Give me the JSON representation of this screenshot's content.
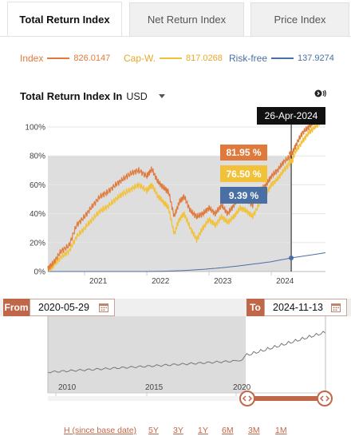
{
  "tabs": [
    {
      "label": "Total Return Index",
      "active": true
    },
    {
      "label": "Net Return Index",
      "active": false
    },
    {
      "label": "Price Index",
      "active": false
    }
  ],
  "legend": [
    {
      "name": "Index",
      "value": "826.0147",
      "color": "#e07a3c"
    },
    {
      "name": "Cap-W.",
      "value": "817.0268",
      "color": "#f2c13a"
    },
    {
      "name": "Risk-free",
      "value": "137.9274",
      "color": "#4a6fa5"
    }
  ],
  "chart_header": {
    "title": "Total Return Index In",
    "currency": "USD"
  },
  "tooltip": {
    "date": "26-Apr-2024",
    "items": [
      {
        "label": "81.95 %",
        "color": "#e07a3c"
      },
      {
        "label": "76.50 %",
        "color": "#f2c13a"
      },
      {
        "label": "9.39 %",
        "color": "#4a6fa5"
      }
    ]
  },
  "navigator": {
    "from_label": "From",
    "from_date": "2020-05-29",
    "to_label": "To",
    "to_date": "2024-11-13",
    "x_ticks": [
      "2010",
      "2015",
      "2020"
    ]
  },
  "range_buttons": [
    "H (since base date)",
    "5Y",
    "3Y",
    "1Y",
    "6M",
    "3M",
    "1M"
  ],
  "colors": {
    "accent": "#c0674a",
    "index": "#e07a3c",
    "capw": "#f2c13a",
    "riskfree": "#4a6fa5"
  },
  "chart_data": {
    "type": "line",
    "x_ticks": [
      "2021",
      "2022",
      "2023",
      "2024"
    ],
    "y_ticks": [
      "0%",
      "20%",
      "40%",
      "60%",
      "80%",
      "100%"
    ],
    "ylim": [
      0,
      105
    ],
    "xlim": [
      2020.41,
      2024.87
    ],
    "series": [
      {
        "name": "Index",
        "color": "#e07a3c",
        "x": [
          2020.41,
          2020.5,
          2020.62,
          2020.75,
          2020.87,
          2021.0,
          2021.12,
          2021.25,
          2021.37,
          2021.5,
          2021.62,
          2021.75,
          2021.87,
          2022.0,
          2022.08,
          2022.18,
          2022.27,
          2022.35,
          2022.44,
          2022.52,
          2022.6,
          2022.7,
          2022.8,
          2022.9,
          2023.0,
          2023.1,
          2023.2,
          2023.3,
          2023.4,
          2023.5,
          2023.6,
          2023.7,
          2023.82,
          2023.92,
          2024.0,
          2024.1,
          2024.2,
          2024.32,
          2024.4,
          2024.5,
          2024.6,
          2024.7,
          2024.8,
          2024.87
        ],
        "y": [
          2,
          6,
          14,
          18,
          32,
          38,
          45,
          52,
          55,
          60,
          64,
          68,
          70,
          66,
          71,
          62,
          58,
          55,
          38,
          48,
          52,
          42,
          38,
          40,
          44,
          40,
          46,
          40,
          46,
          52,
          50,
          46,
          56,
          60,
          66,
          70,
          76,
          80,
          88,
          96,
          100,
          104,
          112,
          120
        ]
      },
      {
        "name": "Cap-W.",
        "color": "#f2c13a",
        "x": [
          2020.41,
          2020.5,
          2020.62,
          2020.75,
          2020.87,
          2021.0,
          2021.12,
          2021.25,
          2021.37,
          2021.5,
          2021.62,
          2021.75,
          2021.87,
          2022.0,
          2022.08,
          2022.18,
          2022.27,
          2022.35,
          2022.44,
          2022.52,
          2022.6,
          2022.7,
          2022.8,
          2022.9,
          2023.0,
          2023.1,
          2023.2,
          2023.3,
          2023.4,
          2023.5,
          2023.6,
          2023.7,
          2023.82,
          2023.92,
          2024.0,
          2024.1,
          2024.2,
          2024.32,
          2024.4,
          2024.5,
          2024.6,
          2024.7,
          2024.8,
          2024.87
        ],
        "y": [
          1,
          4,
          10,
          14,
          24,
          30,
          36,
          42,
          45,
          50,
          54,
          57,
          60,
          56,
          60,
          52,
          48,
          44,
          26,
          36,
          40,
          30,
          22,
          30,
          36,
          32,
          38,
          34,
          38,
          44,
          42,
          38,
          48,
          54,
          60,
          64,
          70,
          76,
          84,
          90,
          96,
          100,
          104,
          112
        ]
      },
      {
        "name": "Risk-free",
        "color": "#4a6fa5",
        "x": [
          2020.41,
          2021.0,
          2021.5,
          2022.0,
          2022.3,
          2022.6,
          2022.9,
          2023.2,
          2023.5,
          2023.8,
          2024.0,
          2024.32,
          2024.6,
          2024.87
        ],
        "y": [
          0,
          0,
          0,
          0,
          0.2,
          0.7,
          1.5,
          2.6,
          4.0,
          5.6,
          6.8,
          9.4,
          11.2,
          13
        ]
      }
    ]
  }
}
